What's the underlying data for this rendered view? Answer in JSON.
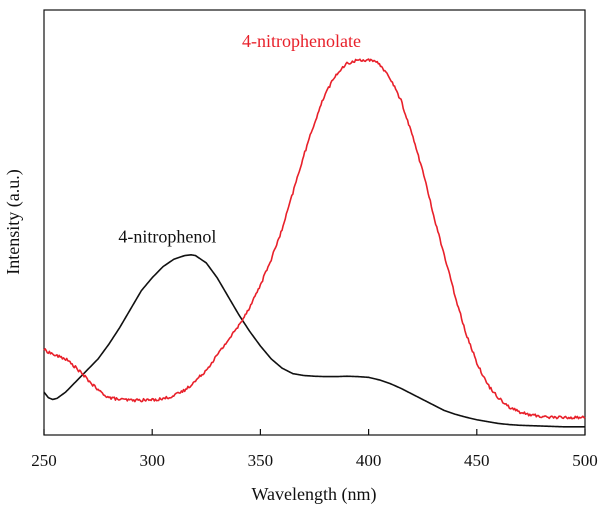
{
  "chart_data": {
    "type": "line",
    "title": "",
    "xlabel": "Wavelength (nm)",
    "ylabel": "Intensity (a.u.)",
    "xlim": [
      250,
      500
    ],
    "ylim": [
      0,
      1
    ],
    "x_ticks": [
      "250",
      "300",
      "350",
      "400",
      "450",
      "500"
    ],
    "y_ticks_shown": false,
    "grid": false,
    "legend": "none (curves labelled directly)",
    "series": [
      {
        "name": "4-nitrophenol",
        "color": "#111111",
        "x": [
          250,
          252,
          254,
          256,
          260,
          265,
          270,
          275,
          280,
          285,
          290,
          295,
          300,
          305,
          310,
          315,
          318,
          320,
          325,
          330,
          335,
          340,
          345,
          350,
          355,
          360,
          365,
          370,
          375,
          380,
          385,
          390,
          395,
          400,
          405,
          410,
          415,
          420,
          425,
          430,
          435,
          440,
          445,
          450,
          455,
          460,
          465,
          470,
          475,
          480,
          485,
          490,
          495,
          500
        ],
        "y": [
          0.1,
          0.085,
          0.08,
          0.083,
          0.1,
          0.13,
          0.16,
          0.19,
          0.23,
          0.275,
          0.325,
          0.375,
          0.41,
          0.44,
          0.46,
          0.47,
          0.472,
          0.47,
          0.45,
          0.41,
          0.36,
          0.31,
          0.265,
          0.225,
          0.19,
          0.165,
          0.15,
          0.145,
          0.143,
          0.142,
          0.142,
          0.143,
          0.142,
          0.14,
          0.133,
          0.123,
          0.11,
          0.095,
          0.08,
          0.065,
          0.05,
          0.04,
          0.032,
          0.025,
          0.02,
          0.015,
          0.012,
          0.01,
          0.009,
          0.008,
          0.007,
          0.006,
          0.006,
          0.006
        ]
      },
      {
        "name": "4-nitrophenolate",
        "color": "#e8202a",
        "x": [
          250,
          255,
          260,
          265,
          270,
          275,
          280,
          285,
          290,
          295,
          300,
          305,
          310,
          315,
          320,
          325,
          330,
          335,
          340,
          345,
          350,
          355,
          360,
          365,
          370,
          375,
          380,
          385,
          390,
          395,
          400,
          405,
          410,
          415,
          420,
          425,
          430,
          435,
          440,
          445,
          450,
          455,
          460,
          465,
          470,
          475,
          480,
          485,
          490,
          495,
          500
        ],
        "y": [
          0.215,
          0.2,
          0.19,
          0.165,
          0.135,
          0.105,
          0.085,
          0.08,
          0.078,
          0.078,
          0.079,
          0.082,
          0.09,
          0.105,
          0.13,
          0.16,
          0.2,
          0.24,
          0.28,
          0.33,
          0.39,
          0.46,
          0.54,
          0.64,
          0.74,
          0.83,
          0.91,
          0.96,
          0.99,
          1.0,
          1.0,
          0.99,
          0.95,
          0.89,
          0.8,
          0.7,
          0.58,
          0.47,
          0.36,
          0.26,
          0.18,
          0.12,
          0.085,
          0.06,
          0.045,
          0.038,
          0.034,
          0.032,
          0.031,
          0.031,
          0.032
        ]
      }
    ],
    "annotations": [
      {
        "text": "4-nitrophenol",
        "series": 0,
        "x": 307,
        "y": 0.505
      },
      {
        "text": "4-nitrophenolate",
        "series": 1,
        "x": 369,
        "y": 1.035
      }
    ]
  }
}
